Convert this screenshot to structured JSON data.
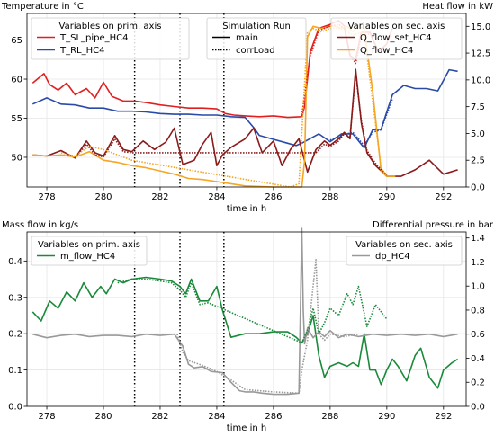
{
  "chart_data": [
    {
      "type": "line",
      "xlabel": "time in h",
      "ylabel": "Temperature in °C",
      "ylabel2": "Heat flow in kW",
      "xlim": [
        277.3,
        292.8
      ],
      "ylim": [
        46.2,
        68.4
      ],
      "ylim2": [
        0,
        16.2
      ],
      "xticks": [
        278,
        280,
        282,
        284,
        286,
        288,
        290,
        292
      ],
      "yticks": [
        50,
        55,
        60,
        65
      ],
      "yticks2": [
        0.0,
        2.5,
        5.0,
        7.5,
        10.0,
        12.5,
        15.0
      ],
      "vlines": [
        281.1,
        282.7,
        284.25
      ],
      "grid": true,
      "legends": [
        {
          "title": "Variables on prim. axis",
          "placement": "top-left",
          "entries": [
            "T_SL_pipe_HC4",
            "T_RL_HC4"
          ]
        },
        {
          "title": "Simulation Run",
          "placement": "top-center",
          "entries": [
            "main",
            "corrLoad"
          ]
        },
        {
          "title": "Variables on sec. axis",
          "placement": "top-right",
          "entries": [
            "Q_flow_set_HC4",
            "Q_flow_HC4"
          ]
        }
      ],
      "series": [
        {
          "name": "T_SL_pipe_HC4",
          "axis": "primary",
          "color": "#e02020",
          "style": "solid",
          "x": [
            277.5,
            277.9,
            278.1,
            278.4,
            278.7,
            279.0,
            279.4,
            279.7,
            280.0,
            280.3,
            280.7,
            281.1,
            281.5,
            282.0,
            282.5,
            283.0,
            283.5,
            284.0,
            284.3,
            284.6,
            285.0,
            285.5,
            286.0,
            286.5,
            287.0,
            287.1,
            287.3,
            287.6,
            288.0,
            288.3,
            288.5,
            288.7,
            288.9,
            289.1,
            289.4,
            289.7,
            290.0,
            290.2
          ],
          "y": [
            59.5,
            60.7,
            59.3,
            58.6,
            59.5,
            58.0,
            58.8,
            57.6,
            59.6,
            57.8,
            57.2,
            57.2,
            57.0,
            56.7,
            56.5,
            56.3,
            56.3,
            56.2,
            55.6,
            55.4,
            55.3,
            55.2,
            55.3,
            55.1,
            55.2,
            56.5,
            63.5,
            66.5,
            67.0,
            67.5,
            66.8,
            63.0,
            62.5,
            66.0,
            66.0,
            63.5,
            64.5,
            66.5
          ]
        },
        {
          "name": "T_RL_HC4",
          "axis": "primary",
          "color": "#2a4aa8",
          "style": "solid",
          "x": [
            277.5,
            278.0,
            278.5,
            279.0,
            279.5,
            280.0,
            280.5,
            281.0,
            281.5,
            282.0,
            282.5,
            283.0,
            283.5,
            284.0,
            284.5,
            285.0,
            285.3,
            285.5,
            286.0,
            286.5,
            286.8,
            287.0,
            287.2,
            287.6,
            288.0,
            288.4,
            288.8,
            289.2,
            289.5,
            289.8,
            290.2,
            290.6,
            291.0,
            291.4,
            291.8,
            292.2,
            292.5
          ],
          "y": [
            56.8,
            57.6,
            56.8,
            56.7,
            56.3,
            56.3,
            55.9,
            55.9,
            55.8,
            55.6,
            55.5,
            55.5,
            55.4,
            55.4,
            55.2,
            55.1,
            53.8,
            52.8,
            52.3,
            51.8,
            51.5,
            51.8,
            52.2,
            53.0,
            52.0,
            53.0,
            53.0,
            51.2,
            53.5,
            53.6,
            58.0,
            59.2,
            58.8,
            58.8,
            58.5,
            61.2,
            61.0
          ]
        },
        {
          "name": "Q_flow_set_HC4",
          "axis": "secondary",
          "color": "#8b1a1a",
          "style": "solid",
          "x": [
            277.5,
            278.0,
            278.5,
            279.0,
            279.4,
            279.7,
            280.0,
            280.4,
            280.7,
            281.0,
            281.4,
            281.8,
            282.2,
            282.5,
            282.8,
            283.2,
            283.5,
            283.8,
            284.0,
            284.2,
            284.5,
            285.0,
            285.3,
            285.6,
            286.0,
            286.3,
            286.6,
            286.9,
            287.2,
            287.5,
            287.8,
            288.0,
            288.3,
            288.5,
            288.7,
            288.9,
            289.1,
            289.3,
            289.6,
            290.0,
            290.5,
            291.0,
            291.5,
            292.0,
            292.5
          ],
          "y": [
            3.0,
            2.9,
            3.4,
            2.7,
            4.3,
            3.2,
            2.9,
            4.8,
            3.5,
            3.3,
            4.3,
            3.5,
            4.2,
            5.5,
            2.1,
            2.5,
            4.0,
            5.1,
            2.0,
            3.0,
            3.7,
            4.5,
            5.5,
            3.2,
            4.3,
            2.0,
            3.5,
            4.5,
            1.4,
            3.5,
            4.3,
            3.9,
            4.5,
            5.1,
            4.5,
            11.0,
            6.0,
            3.2,
            2.0,
            1.0,
            1.0,
            1.6,
            2.5,
            1.2,
            1.6
          ]
        },
        {
          "name": "Q_flow_HC4",
          "axis": "secondary",
          "color": "#f5a623",
          "style": "solid",
          "x": [
            277.5,
            278.0,
            278.5,
            279.0,
            279.5,
            280.0,
            280.5,
            281.0,
            281.5,
            282.0,
            282.5,
            283.0,
            283.5,
            284.0,
            284.5,
            285.0,
            285.5,
            286.0,
            286.5,
            287.0,
            287.1,
            287.2,
            287.4,
            287.7,
            288.0,
            288.2,
            288.4,
            288.6,
            288.8,
            289.0,
            289.2,
            289.5,
            289.8,
            290.0,
            290.3
          ],
          "y": [
            3.0,
            2.9,
            3.0,
            2.8,
            3.3,
            2.5,
            2.3,
            2.0,
            1.8,
            1.5,
            1.2,
            0.8,
            0.7,
            0.5,
            0.3,
            0.1,
            0.05,
            0.0,
            0.0,
            0.0,
            2.5,
            14.0,
            15.0,
            14.8,
            15.0,
            15.0,
            14.8,
            15.0,
            14.5,
            15.0,
            14.8,
            9.0,
            1.5,
            1.0,
            1.0
          ]
        },
        {
          "name": "T_SL_pipe_HC4 corrLoad",
          "axis": "primary",
          "color": "#e02020",
          "style": "dotted",
          "x": [
            287.0,
            287.3,
            287.6,
            288.0,
            288.3,
            288.5,
            288.7,
            288.9,
            289.1,
            289.4
          ],
          "y": [
            55.4,
            63.0,
            66.2,
            66.8,
            67.0,
            66.5,
            63.2,
            62.0,
            65.5,
            65.8
          ]
        },
        {
          "name": "T_RL_HC4 corrLoad",
          "axis": "primary",
          "color": "#2a4aa8",
          "style": "dotted",
          "x": [
            288.0,
            288.4,
            288.8,
            289.2,
            289.5,
            289.8,
            290.2
          ],
          "y": [
            52.2,
            52.8,
            53.2,
            51.5,
            53.2,
            53.5,
            57.5
          ]
        },
        {
          "name": "Q_flow_set_HC4 corrLoad",
          "axis": "secondary",
          "color": "#8b1a1a",
          "style": "dotted",
          "x": [
            279.0,
            279.4,
            279.7,
            280.0,
            280.4,
            280.7,
            281.0,
            287.5,
            287.8,
            288.0,
            288.3,
            288.5,
            288.7,
            288.9,
            289.1,
            289.3,
            289.6,
            290.0
          ],
          "y": [
            2.7,
            4.0,
            3.0,
            2.8,
            4.5,
            3.3,
            3.2,
            3.2,
            4.0,
            3.8,
            4.3,
            5.0,
            4.6,
            10.6,
            6.2,
            3.4,
            2.2,
            1.1
          ]
        },
        {
          "name": "Q_flow_HC4 corrLoad",
          "axis": "secondary",
          "color": "#f5a623",
          "style": "dotted",
          "x": [
            278.5,
            279.0,
            279.5,
            280.0,
            280.5,
            281.0,
            286.6,
            286.9,
            287.0,
            287.2,
            287.4,
            287.7,
            288.0,
            288.4,
            288.8,
            289.2,
            289.5,
            289.8,
            290.0
          ],
          "y": [
            3.2,
            2.9,
            3.8,
            3.5,
            3.0,
            2.5,
            0.0,
            0.3,
            5.0,
            14.5,
            14.8,
            14.5,
            14.8,
            14.8,
            14.2,
            14.5,
            8.0,
            1.8,
            1.0
          ]
        }
      ]
    },
    {
      "type": "line",
      "xlabel": "time in h",
      "ylabel": "Mass flow in kg/s",
      "ylabel2": "Differential pressure in bar",
      "xlim": [
        277.3,
        292.8
      ],
      "ylim": [
        0.0,
        0.48
      ],
      "ylim2": [
        0.0,
        1.45
      ],
      "xticks": [
        278,
        280,
        282,
        284,
        286,
        288,
        290,
        292
      ],
      "yticks": [
        0.0,
        0.1,
        0.2,
        0.3,
        0.4
      ],
      "yticks2": [
        0.0,
        0.2,
        0.4,
        0.6,
        0.8,
        1.0,
        1.2,
        1.4
      ],
      "vlines": [
        281.1,
        282.7,
        284.25
      ],
      "grid": true,
      "legends": [
        {
          "title": "Variables on prim. axis",
          "placement": "top-left",
          "entries": [
            "m_flow_HC4"
          ]
        },
        {
          "title": "Variables on sec. axis",
          "placement": "top-right",
          "entries": [
            "dp_HC4"
          ]
        }
      ],
      "series": [
        {
          "name": "m_flow_HC4",
          "axis": "primary",
          "color": "#1a8a3a",
          "style": "solid",
          "x": [
            277.5,
            277.8,
            278.1,
            278.4,
            278.7,
            279.0,
            279.3,
            279.6,
            279.9,
            280.1,
            280.4,
            280.7,
            281.0,
            281.5,
            282.0,
            282.4,
            282.7,
            282.9,
            283.1,
            283.4,
            283.7,
            284.0,
            284.2,
            284.5,
            285.0,
            285.5,
            286.0,
            286.5,
            286.8,
            287.0,
            287.2,
            287.4,
            287.6,
            287.8,
            288.0,
            288.3,
            288.6,
            288.8,
            289.0,
            289.2,
            289.4,
            289.6,
            289.8,
            290.0,
            290.2,
            290.4,
            290.7,
            291.0,
            291.2,
            291.5,
            291.8,
            292.0,
            292.3,
            292.5
          ],
          "y": [
            0.26,
            0.235,
            0.29,
            0.27,
            0.315,
            0.29,
            0.34,
            0.3,
            0.33,
            0.31,
            0.35,
            0.34,
            0.35,
            0.355,
            0.35,
            0.345,
            0.33,
            0.31,
            0.35,
            0.29,
            0.29,
            0.33,
            0.265,
            0.19,
            0.2,
            0.2,
            0.205,
            0.205,
            0.19,
            0.175,
            0.2,
            0.25,
            0.14,
            0.08,
            0.11,
            0.12,
            0.11,
            0.12,
            0.11,
            0.2,
            0.1,
            0.1,
            0.06,
            0.1,
            0.13,
            0.11,
            0.07,
            0.14,
            0.16,
            0.08,
            0.05,
            0.1,
            0.12,
            0.13
          ]
        },
        {
          "name": "dp_HC4",
          "axis": "secondary",
          "color": "#999999",
          "style": "solid",
          "x": [
            277.5,
            278.0,
            278.5,
            279.0,
            279.5,
            280.0,
            280.5,
            281.0,
            281.5,
            282.0,
            282.5,
            282.8,
            283.0,
            283.2,
            283.5,
            283.8,
            284.2,
            284.5,
            284.8,
            285.0,
            285.3,
            285.6,
            286.0,
            286.5,
            286.9,
            287.0,
            287.05,
            287.1,
            287.2,
            287.4,
            287.6,
            287.8,
            288.0,
            288.3,
            288.6,
            289.0,
            289.5,
            290.0,
            290.5,
            291.0,
            291.5,
            292.0,
            292.5
          ],
          "y": [
            0.6,
            0.57,
            0.59,
            0.6,
            0.58,
            0.59,
            0.59,
            0.58,
            0.6,
            0.59,
            0.6,
            0.5,
            0.35,
            0.32,
            0.33,
            0.29,
            0.28,
            0.2,
            0.13,
            0.12,
            0.12,
            0.11,
            0.1,
            0.1,
            0.11,
            1.48,
            0.8,
            0.52,
            0.65,
            0.57,
            0.62,
            0.58,
            0.63,
            0.57,
            0.6,
            0.58,
            0.6,
            0.59,
            0.6,
            0.59,
            0.6,
            0.58,
            0.6
          ]
        },
        {
          "name": "m_flow_HC4 corrLoad",
          "axis": "primary",
          "color": "#1a8a3a",
          "style": "dotted",
          "x": [
            280.5,
            281.0,
            281.5,
            282.0,
            282.4,
            282.7,
            282.9,
            283.1,
            283.4,
            283.7,
            287.0,
            287.2,
            287.4,
            287.6,
            287.8,
            288.0,
            288.3,
            288.6,
            288.8,
            289.0,
            289.3,
            289.6,
            290.0
          ],
          "y": [
            0.34,
            0.35,
            0.35,
            0.345,
            0.34,
            0.32,
            0.3,
            0.34,
            0.28,
            0.285,
            0.175,
            0.21,
            0.27,
            0.2,
            0.23,
            0.27,
            0.25,
            0.31,
            0.28,
            0.33,
            0.22,
            0.28,
            0.24
          ]
        },
        {
          "name": "dp_HC4 corrLoad",
          "axis": "secondary",
          "color": "#999999",
          "style": "dotted",
          "x": [
            282.6,
            282.8,
            283.0,
            283.5,
            284.0,
            284.5,
            285.0,
            286.0,
            286.9,
            287.0,
            287.2,
            287.4,
            287.5,
            287.6,
            287.8,
            288.0,
            288.5,
            289.0
          ],
          "y": [
            0.6,
            0.45,
            0.38,
            0.34,
            0.29,
            0.22,
            0.14,
            0.12,
            0.11,
            0.3,
            0.55,
            1.0,
            1.22,
            0.6,
            0.55,
            0.6,
            0.58,
            0.6
          ]
        }
      ]
    }
  ]
}
